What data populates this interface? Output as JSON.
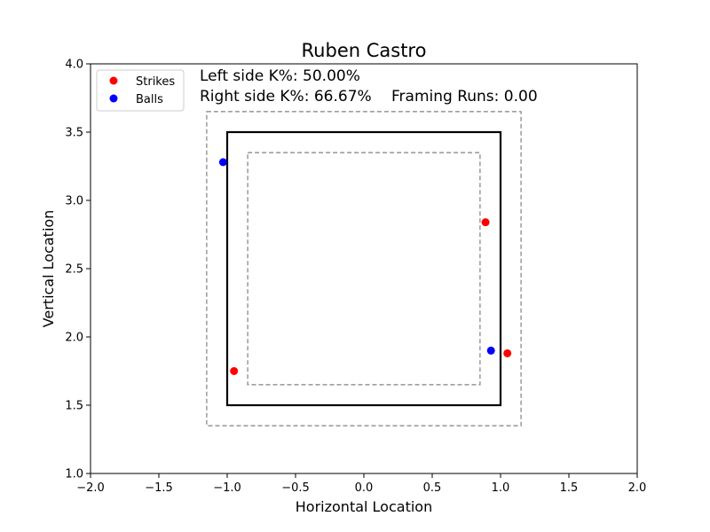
{
  "chart_data": {
    "type": "scatter",
    "title": "Ruben  Castro",
    "xlabel": "Horizontal Location",
    "ylabel": "Vertical Location",
    "xlim": [
      -2.0,
      2.0
    ],
    "ylim": [
      1.0,
      4.0
    ],
    "x_ticks": [
      -2.0,
      -1.5,
      -1.0,
      -0.5,
      0.0,
      0.5,
      1.0,
      1.5,
      2.0
    ],
    "x_tick_labels": [
      "−2.0",
      "−1.5",
      "−1.0",
      "−0.5",
      "0.0",
      "0.5",
      "1.0",
      "1.5",
      "2.0"
    ],
    "y_ticks": [
      1.0,
      1.5,
      2.0,
      2.5,
      3.0,
      3.5,
      4.0
    ],
    "y_tick_labels": [
      "1.0",
      "1.5",
      "2.0",
      "2.5",
      "3.0",
      "3.5",
      "4.0"
    ],
    "grid": false,
    "legend_position": "top-left",
    "strike_zone": {
      "x": [
        -1.0,
        1.0
      ],
      "y": [
        1.5,
        3.5
      ]
    },
    "outer_zone": {
      "x": [
        -1.15,
        1.15
      ],
      "y": [
        1.35,
        3.65
      ]
    },
    "inner_zone": {
      "x": [
        -0.85,
        0.85
      ],
      "y": [
        1.65,
        3.35
      ]
    },
    "series": [
      {
        "name": "Strikes",
        "color": "#ff0000",
        "points": [
          {
            "x": -0.95,
            "y": 1.75
          },
          {
            "x": 0.89,
            "y": 2.84
          },
          {
            "x": 1.05,
            "y": 1.88
          }
        ]
      },
      {
        "name": "Balls",
        "color": "#0000ff",
        "points": [
          {
            "x": -1.03,
            "y": 3.28
          },
          {
            "x": 0.93,
            "y": 1.9
          }
        ]
      }
    ],
    "annotations": {
      "left_k": "Left side K%: 50.00%",
      "right_k": "Right side K%: 66.67%",
      "framing": "Framing Runs: 0.00"
    }
  }
}
